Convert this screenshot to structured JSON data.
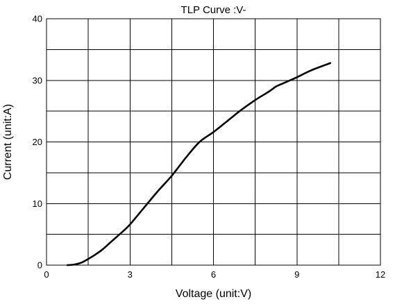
{
  "chart_data": {
    "type": "line",
    "title": "TLP Curve :V-",
    "xlabel": "Voltage (unit:V)",
    "ylabel": "Current (unit:A)",
    "xlim": [
      0,
      12
    ],
    "ylim": [
      0,
      40
    ],
    "x_major_ticks": [
      0,
      3,
      6,
      9,
      12
    ],
    "x_tick_labels": [
      "0",
      "3",
      "6",
      "9",
      "12"
    ],
    "y_major_ticks": [
      0,
      10,
      20,
      30,
      40
    ],
    "y_tick_labels": [
      "0",
      "10",
      "20",
      "30",
      "40"
    ],
    "x_grid": [
      1.5,
      3,
      4.5,
      6,
      7.5,
      9,
      10.5
    ],
    "y_grid": [
      5,
      10,
      15,
      20,
      25,
      30,
      35
    ],
    "grid": true,
    "legend": "none",
    "series": [
      {
        "color": "#000000",
        "x": [
          0.75,
          1.0,
          1.25,
          1.5,
          1.75,
          2.0,
          2.25,
          2.5,
          2.75,
          3.0,
          3.5,
          4.0,
          4.5,
          5.0,
          5.5,
          6.0,
          6.5,
          7.0,
          7.5,
          8.0,
          8.25,
          8.5,
          9.0,
          9.5,
          10.2
        ],
        "y": [
          0.0,
          0.1,
          0.4,
          1.0,
          1.7,
          2.5,
          3.5,
          4.5,
          5.5,
          6.6,
          9.3,
          12.0,
          14.5,
          17.4,
          20.0,
          21.6,
          23.4,
          25.2,
          26.8,
          28.2,
          29.0,
          29.5,
          30.5,
          31.6,
          32.8
        ]
      }
    ]
  }
}
